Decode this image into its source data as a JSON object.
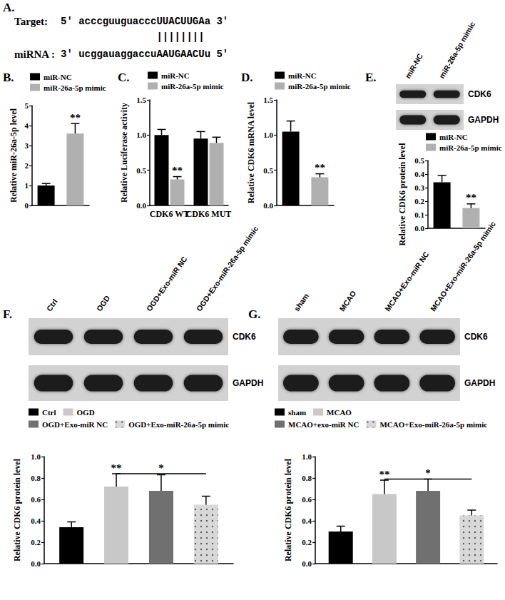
{
  "chart_data": [
    {
      "type": "bar",
      "title": "B.",
      "ylabel": "Relative miR-26a-5p level",
      "categories": [
        null
      ],
      "ylim": [
        0,
        5
      ],
      "yticks": [
        0,
        1,
        2,
        3,
        4,
        5
      ],
      "legend": "top-left",
      "series": [
        {
          "name": "miR-NC",
          "color": "#000000",
          "values": [
            1.0
          ],
          "errors": [
            0.1
          ]
        },
        {
          "name": "miR-26a-5p mimic",
          "color": "#b0b0b0",
          "values": [
            3.6
          ],
          "errors": [
            0.5
          ]
        }
      ],
      "annotations": [
        {
          "text": "**",
          "series": 1,
          "index": 0
        }
      ]
    },
    {
      "type": "bar",
      "title": "C.",
      "ylabel": "Relative Luciferase activity",
      "categories": [
        "CDK6 WT",
        "CDK6 MUT"
      ],
      "ylim": [
        0,
        1.5
      ],
      "yticks": [
        {
          "value": 0,
          "label": "0.0"
        },
        {
          "value": 0.5,
          "label": "0.5"
        },
        {
          "value": 1,
          "label": "1.0"
        },
        {
          "value": 1.5,
          "label": "1.5"
        }
      ],
      "legend": "top-left",
      "series": [
        {
          "name": "miR-NC",
          "color": "#000000",
          "values": [
            1.0,
            0.95
          ],
          "errors": [
            0.08,
            0.1
          ]
        },
        {
          "name": "miR-26a-5p mimic",
          "color": "#b0b0b0",
          "values": [
            0.37,
            0.89
          ],
          "errors": [
            0.04,
            0.08
          ]
        }
      ],
      "annotations": [
        {
          "text": "**",
          "series": 1,
          "index": 0
        }
      ]
    },
    {
      "type": "bar",
      "title": "D.",
      "ylabel": "Relative CDK6 mRNA level",
      "categories": [
        null
      ],
      "ylim": [
        0,
        1.5
      ],
      "yticks": [
        {
          "value": 0,
          "label": "0.0"
        },
        {
          "value": 0.5,
          "label": "0.5"
        },
        {
          "value": 1,
          "label": "1.0"
        },
        {
          "value": 1.5,
          "label": "1.5"
        }
      ],
      "legend": "top-left",
      "series": [
        {
          "name": "miR-NC",
          "color": "#000000",
          "values": [
            1.05
          ],
          "errors": [
            0.15
          ]
        },
        {
          "name": "miR-26a-5p mimic",
          "color": "#b0b0b0",
          "values": [
            0.4
          ],
          "errors": [
            0.05
          ]
        }
      ],
      "annotations": [
        {
          "text": "**",
          "series": 1,
          "index": 0
        }
      ]
    },
    {
      "type": "bar",
      "title": "E.",
      "ylabel": "Relative CDK6 protein level",
      "categories": [
        null
      ],
      "ylim": [
        0,
        0.5
      ],
      "yticks": [
        {
          "value": 0,
          "label": "0.0"
        },
        {
          "value": 0.1,
          "label": "0.1"
        },
        {
          "value": 0.2,
          "label": "0.2"
        },
        {
          "value": 0.3,
          "label": "0.3"
        },
        {
          "value": 0.4,
          "label": "0.4"
        },
        {
          "value": 0.5,
          "label": "0.5"
        }
      ],
      "legend": "top-left",
      "series": [
        {
          "name": "miR-NC",
          "color": "#000000",
          "values": [
            0.34
          ],
          "errors": [
            0.05
          ]
        },
        {
          "name": "miR-26a-5p mimic",
          "color": "#b0b0b0",
          "values": [
            0.15
          ],
          "errors": [
            0.03
          ]
        }
      ],
      "annotations": [
        {
          "text": "**",
          "series": 1,
          "index": 0
        }
      ],
      "blot": {
        "columns": [
          "miR-NC",
          "miR-26a-5p mimic"
        ],
        "rows": [
          "CDK6",
          "GAPDH"
        ]
      }
    },
    {
      "type": "bar",
      "title": "F.",
      "ylabel": "Relative CDK6 protein level",
      "categories": [
        null
      ],
      "ylim": [
        0,
        1
      ],
      "yticks": [
        {
          "value": 0,
          "label": "0.0"
        },
        {
          "value": 0.2,
          "label": "0.2"
        },
        {
          "value": 0.4,
          "label": "0.4"
        },
        {
          "value": 0.6,
          "label": "0.6"
        },
        {
          "value": 0.8,
          "label": "0.8"
        },
        {
          "value": 1,
          "label": "1.0"
        }
      ],
      "legend": "top-left",
      "series": [
        {
          "name": "Ctrl",
          "color": "#000000",
          "values": [
            0.34
          ],
          "errors": [
            0.05
          ]
        },
        {
          "name": "OGD",
          "color": "#c8c8c8",
          "values": [
            0.72
          ],
          "errors": [
            0.12
          ]
        },
        {
          "name": "OGD+Exo-miR NC",
          "color": "#707070",
          "values": [
            0.68
          ],
          "errors": [
            0.15
          ]
        },
        {
          "name": "OGD+Exo-miR-26a-5p mimic",
          "color": "#d8d8d8",
          "values": [
            0.55
          ],
          "errors": [
            0.08
          ]
        }
      ],
      "annotations": [
        {
          "text": "**",
          "series": 1,
          "index": 0
        },
        {
          "text": "*",
          "from": 1,
          "to": 3,
          "index": 0
        }
      ],
      "blot": {
        "columns": [
          "Ctrl",
          "OGD",
          "OGD+Exo-miR NC",
          "OGD+Exo-miR-26a-5p mimic"
        ],
        "rows": [
          "CDK6",
          "GAPDH"
        ]
      }
    },
    {
      "type": "bar",
      "title": "G.",
      "ylabel": "Relative CDK6 protein level",
      "categories": [
        null
      ],
      "ylim": [
        0,
        1
      ],
      "yticks": [
        {
          "value": 0,
          "label": "0.0"
        },
        {
          "value": 0.2,
          "label": "0.2"
        },
        {
          "value": 0.4,
          "label": "0.4"
        },
        {
          "value": 0.6,
          "label": "0.6"
        },
        {
          "value": 0.8,
          "label": "0.8"
        },
        {
          "value": 1,
          "label": "1.0"
        }
      ],
      "legend": "top-left",
      "series": [
        {
          "name": "sham",
          "color": "#000000",
          "values": [
            0.3
          ],
          "errors": [
            0.05
          ]
        },
        {
          "name": "MCAO",
          "color": "#c8c8c8",
          "values": [
            0.65
          ],
          "errors": [
            0.13
          ]
        },
        {
          "name": "MCAO+exo-miR NC",
          "color": "#707070",
          "values": [
            0.68
          ],
          "errors": [
            0.11
          ]
        },
        {
          "name": "MCAO+Exo-miR-26a-5p mimic",
          "color": "#d8d8d8",
          "values": [
            0.45
          ],
          "errors": [
            0.05
          ]
        }
      ],
      "annotations": [
        {
          "text": "**",
          "series": 1,
          "index": 0
        },
        {
          "text": "*",
          "from": 1,
          "to": 3,
          "index": 0
        }
      ],
      "blot": {
        "columns": [
          "sham",
          "MCAO",
          "MCAO+Exo-miR NC",
          "MCAO+Exo-miR-26a-5p mimic"
        ],
        "rows": [
          "CDK6",
          "GAPDH"
        ]
      }
    }
  ],
  "alignment": {
    "title": "A.",
    "rows": [
      {
        "label": "Target:",
        "sequence": "5' acccguuguacccUUACUUGAa 3'"
      },
      {
        "label": "miRNA :",
        "sequence": "3' ucggauaggaccuAAUGAACUu 5'"
      }
    ],
    "match": "||||||||"
  }
}
